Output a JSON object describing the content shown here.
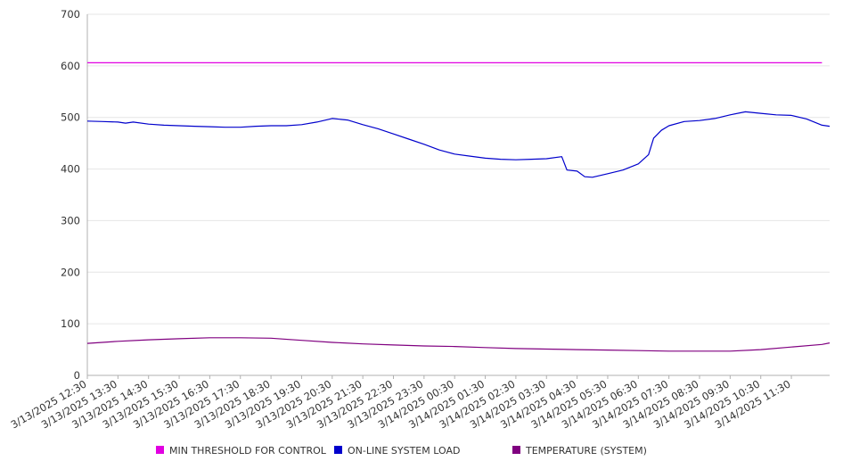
{
  "chart_data": {
    "type": "line",
    "title": "",
    "xlabel": "",
    "ylabel": "",
    "ylim": [
      0,
      700
    ],
    "yticks": [
      0,
      100,
      200,
      300,
      400,
      500,
      600,
      700
    ],
    "grid": true,
    "legend_position": "bottom",
    "x_tick_labels": [
      "3/13/2025 12:30",
      "3/13/2025 13:30",
      "3/13/2025 14:30",
      "3/13/2025 15:30",
      "3/13/2025 16:30",
      "3/13/2025 17:30",
      "3/13/2025 18:30",
      "3/13/2025 19:30",
      "3/13/2025 20:30",
      "3/13/2025 21:30",
      "3/13/2025 22:30",
      "3/13/2025 23:30",
      "3/14/2025 00:30",
      "3/14/2025 01:30",
      "3/14/2025 02:30",
      "3/14/2025 03:30",
      "3/14/2025 04:30",
      "3/14/2025 05:30",
      "3/14/2025 06:30",
      "3/14/2025 07:30",
      "3/14/2025 08:30",
      "3/14/2025 09:30",
      "3/14/2025 10:30",
      "3/14/2025 11:30"
    ],
    "series": [
      {
        "name": "MIN THRESHOLD FOR CONTROL",
        "color": "#e100e1",
        "points": [
          [
            "3/13/2025 12:30",
            606
          ],
          [
            "3/14/2025 12:30",
            606
          ]
        ]
      },
      {
        "name": "ON-LINE SYSTEM LOAD",
        "color": "#0000cc",
        "points": [
          [
            "3/13/2025 12:30",
            493
          ],
          [
            "3/13/2025 13:00",
            492
          ],
          [
            "3/13/2025 13:30",
            491
          ],
          [
            "3/13/2025 13:45",
            489
          ],
          [
            "3/13/2025 14:00",
            491
          ],
          [
            "3/13/2025 14:30",
            487
          ],
          [
            "3/13/2025 15:00",
            485
          ],
          [
            "3/13/2025 15:30",
            484
          ],
          [
            "3/13/2025 16:00",
            483
          ],
          [
            "3/13/2025 16:30",
            482
          ],
          [
            "3/13/2025 17:00",
            481
          ],
          [
            "3/13/2025 17:30",
            481
          ],
          [
            "3/13/2025 18:00",
            483
          ],
          [
            "3/13/2025 18:30",
            484
          ],
          [
            "3/13/2025 19:00",
            484
          ],
          [
            "3/13/2025 19:30",
            486
          ],
          [
            "3/13/2025 20:00",
            491
          ],
          [
            "3/13/2025 20:30",
            498
          ],
          [
            "3/13/2025 21:00",
            495
          ],
          [
            "3/13/2025 21:30",
            486
          ],
          [
            "3/13/2025 22:00",
            478
          ],
          [
            "3/13/2025 22:30",
            468
          ],
          [
            "3/13/2025 23:00",
            458
          ],
          [
            "3/13/2025 23:30",
            448
          ],
          [
            "3/14/2025 00:00",
            437
          ],
          [
            "3/14/2025 00:30",
            429
          ],
          [
            "3/14/2025 01:00",
            425
          ],
          [
            "3/14/2025 01:30",
            421
          ],
          [
            "3/14/2025 02:00",
            419
          ],
          [
            "3/14/2025 02:30",
            418
          ],
          [
            "3/14/2025 03:00",
            419
          ],
          [
            "3/14/2025 03:30",
            420
          ],
          [
            "3/14/2025 04:00",
            424
          ],
          [
            "3/14/2025 04:10",
            398
          ],
          [
            "3/14/2025 04:30",
            396
          ],
          [
            "3/14/2025 04:45",
            385
          ],
          [
            "3/14/2025 05:00",
            384
          ],
          [
            "3/14/2025 05:30",
            391
          ],
          [
            "3/14/2025 06:00",
            398
          ],
          [
            "3/14/2025 06:30",
            410
          ],
          [
            "3/14/2025 06:50",
            428
          ],
          [
            "3/14/2025 07:00",
            460
          ],
          [
            "3/14/2025 07:15",
            475
          ],
          [
            "3/14/2025 07:30",
            484
          ],
          [
            "3/14/2025 08:00",
            492
          ],
          [
            "3/14/2025 08:30",
            494
          ],
          [
            "3/14/2025 09:00",
            498
          ],
          [
            "3/14/2025 09:30",
            505
          ],
          [
            "3/14/2025 10:00",
            511
          ],
          [
            "3/14/2025 10:30",
            508
          ],
          [
            "3/14/2025 11:00",
            505
          ],
          [
            "3/14/2025 11:30",
            504
          ],
          [
            "3/14/2025 12:00",
            497
          ],
          [
            "3/14/2025 12:30",
            485
          ],
          [
            "3/14/2025 12:45",
            483
          ]
        ]
      },
      {
        "name": "TEMPERATURE (SYSTEM)",
        "color": "#800080",
        "points": [
          [
            "3/13/2025 12:30",
            62
          ],
          [
            "3/13/2025 13:30",
            66
          ],
          [
            "3/13/2025 14:30",
            69
          ],
          [
            "3/13/2025 15:30",
            71
          ],
          [
            "3/13/2025 16:30",
            73
          ],
          [
            "3/13/2025 17:30",
            73
          ],
          [
            "3/13/2025 18:30",
            72
          ],
          [
            "3/13/2025 19:30",
            68
          ],
          [
            "3/13/2025 20:30",
            64
          ],
          [
            "3/13/2025 21:30",
            61
          ],
          [
            "3/13/2025 22:30",
            59
          ],
          [
            "3/13/2025 23:30",
            57
          ],
          [
            "3/14/2025 00:30",
            56
          ],
          [
            "3/14/2025 01:30",
            54
          ],
          [
            "3/14/2025 02:30",
            52
          ],
          [
            "3/14/2025 03:30",
            51
          ],
          [
            "3/14/2025 04:30",
            50
          ],
          [
            "3/14/2025 05:30",
            49
          ],
          [
            "3/14/2025 06:30",
            48
          ],
          [
            "3/14/2025 07:30",
            47
          ],
          [
            "3/14/2025 08:30",
            47
          ],
          [
            "3/14/2025 09:30",
            47
          ],
          [
            "3/14/2025 10:30",
            50
          ],
          [
            "3/14/2025 11:30",
            55
          ],
          [
            "3/14/2025 12:30",
            60
          ],
          [
            "3/14/2025 12:45",
            63
          ]
        ]
      }
    ]
  },
  "colors": {
    "axis": "#b0b0b0",
    "grid": "#e6e6e6",
    "text": "#333333"
  }
}
